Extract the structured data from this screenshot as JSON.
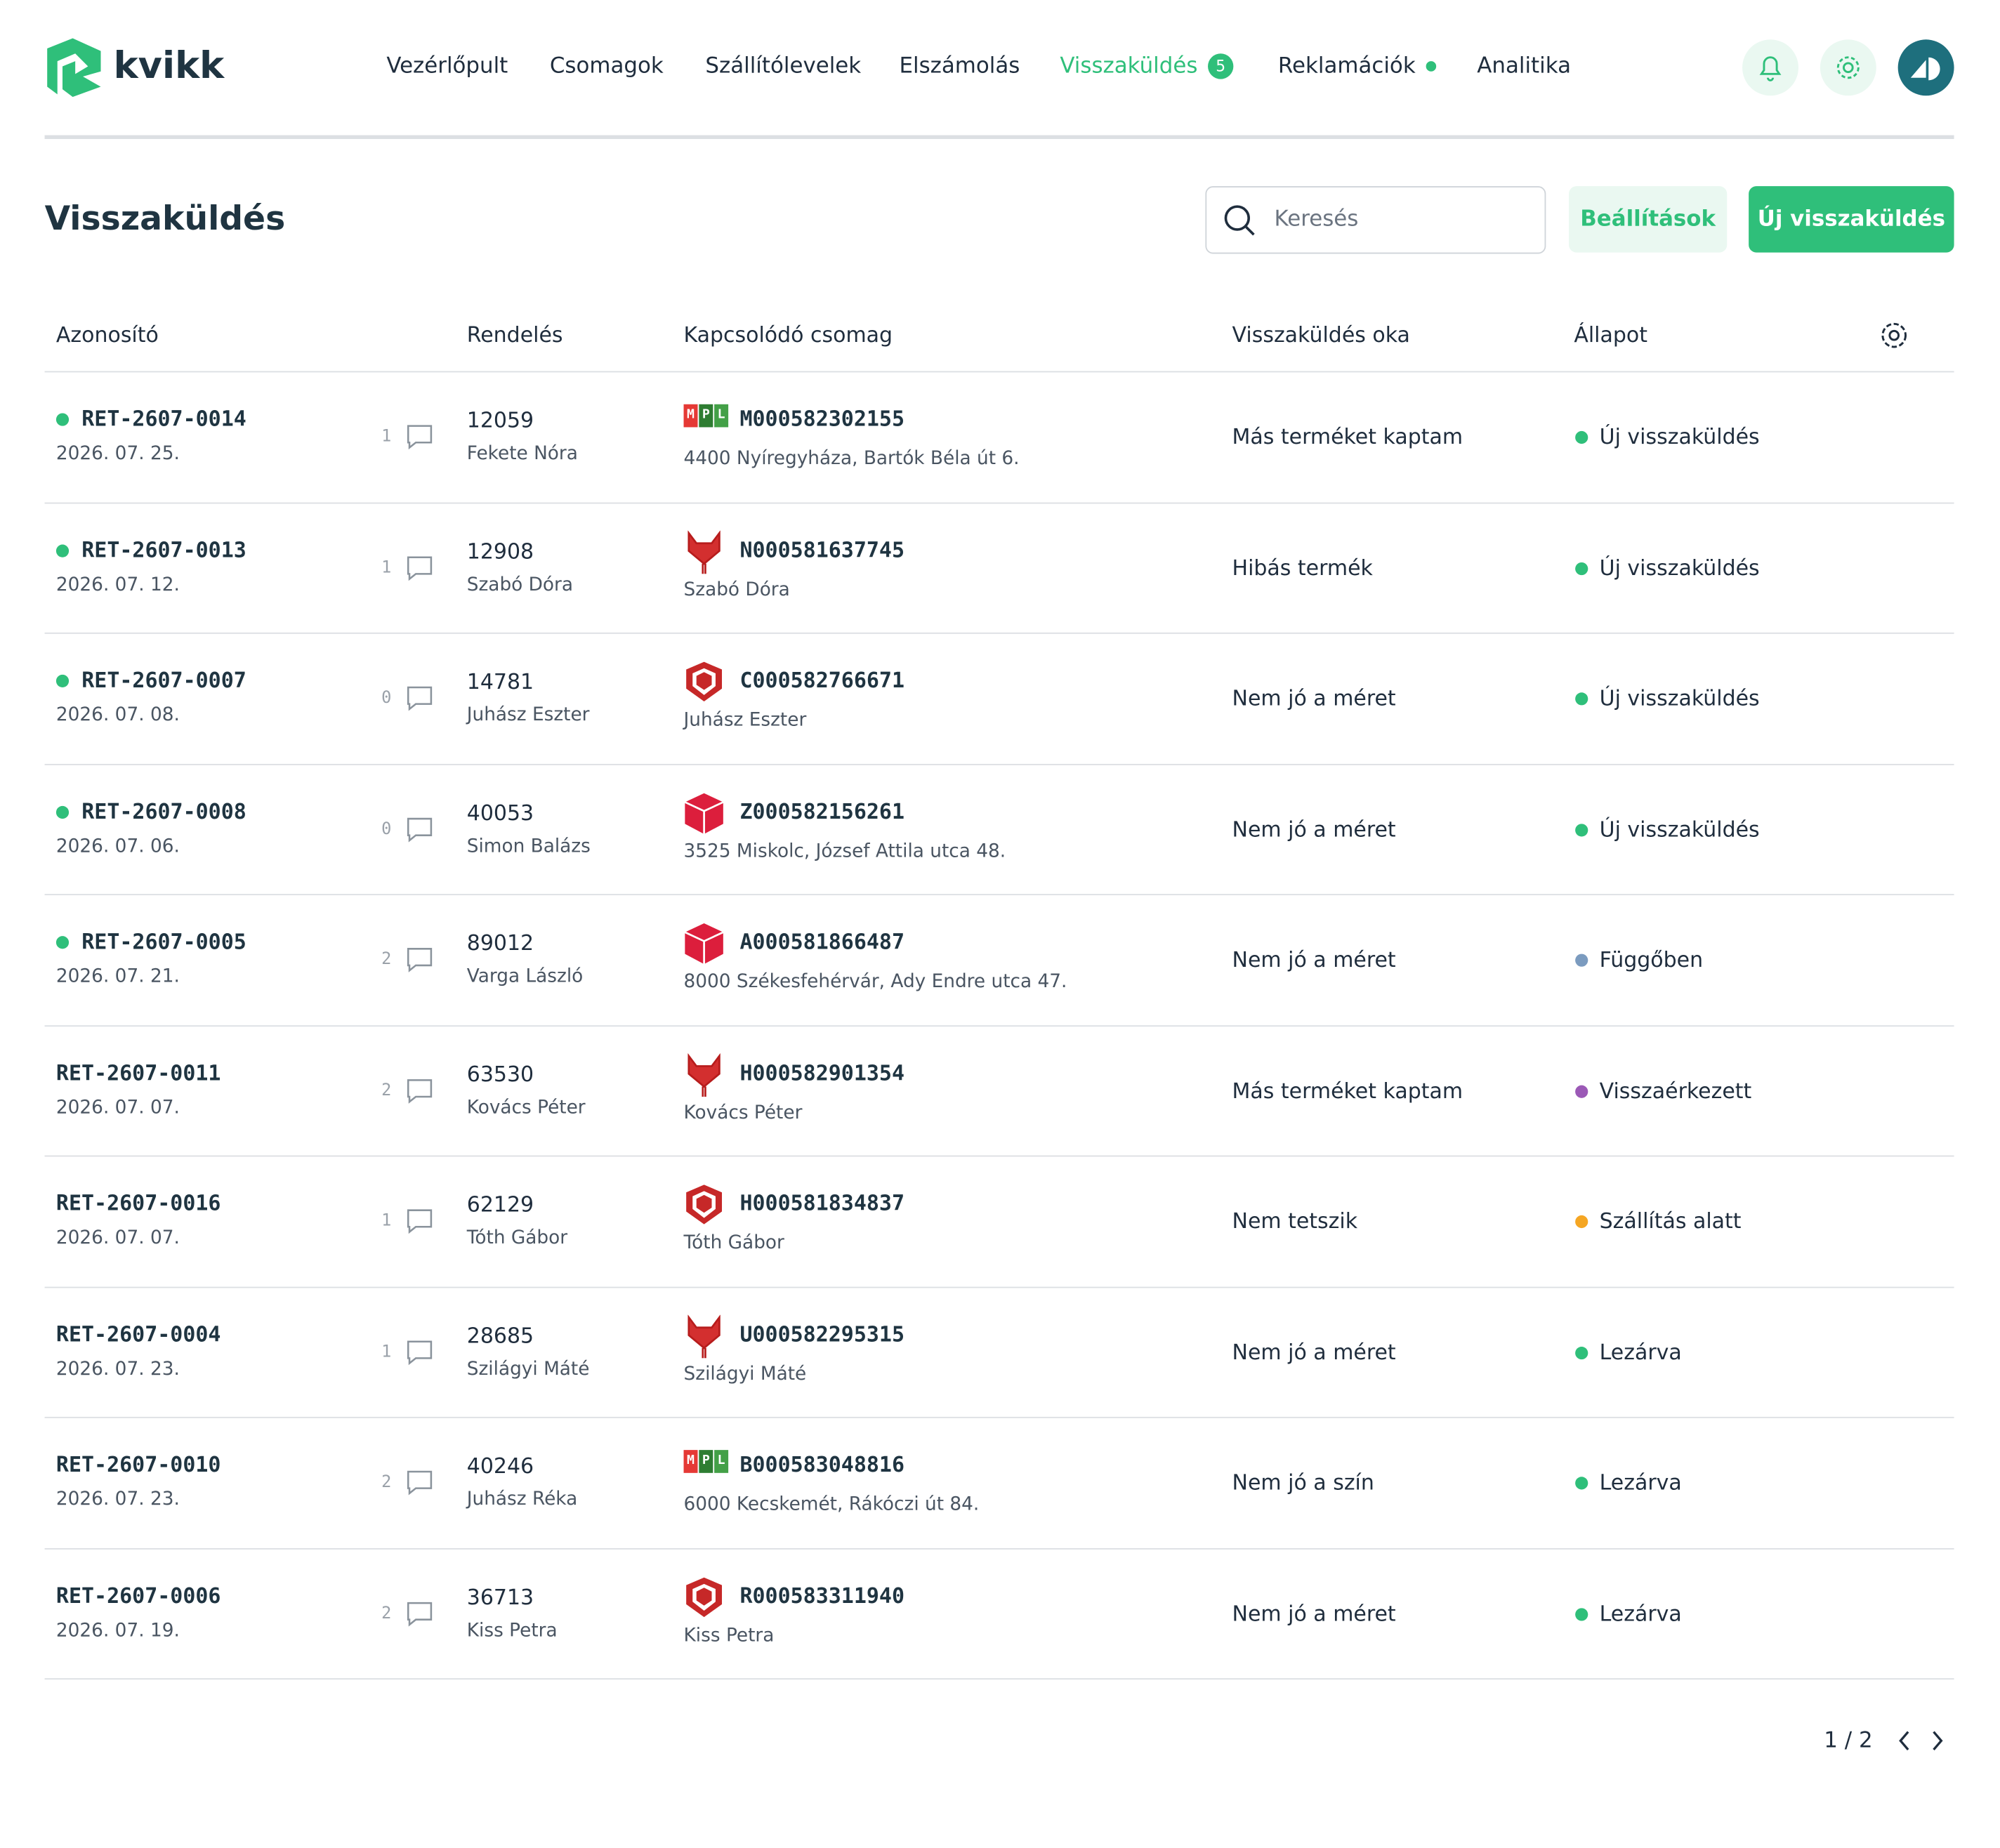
{
  "header": {
    "logo": "kvikk",
    "nav": [
      {
        "label": "Vezérlőpult"
      },
      {
        "label": "Csomagok"
      },
      {
        "label": "Szállítólevelek"
      },
      {
        "label": "Elszámolás"
      },
      {
        "label": "Visszaküldés",
        "active": true,
        "badge": 5
      },
      {
        "label": "Reklamációk",
        "dot": true
      },
      {
        "label": "Analitika"
      }
    ]
  },
  "page": {
    "title": "Visszaküldés",
    "search_placeholder": "Keresés",
    "settings_button": "Beállítások",
    "new_button": "Új visszaküldés"
  },
  "mpl_logo": [
    "M",
    "P",
    "L"
  ],
  "table": {
    "columns": [
      "Azonosító",
      "Rendelés",
      "Kapcsolódó csomag",
      "Visszaküldés oka",
      "Állapot"
    ],
    "rows": [
      {
        "id": "RET-2607-0014",
        "unread": true,
        "date": "2026. 07. 25.",
        "comments": 1,
        "order": "12059",
        "customer": "Fekete Nóra",
        "icon": "mpl",
        "tracking": "M000582302155",
        "address": "4400 Nyíregyháza, Bartók Béla út 6.",
        "reason": "Más terméket kaptam",
        "status": "Új visszaküldés",
        "status_color": "#2fbf7a"
      },
      {
        "id": "RET-2607-0013",
        "unread": true,
        "date": "2026. 07. 12.",
        "comments": 1,
        "order": "12908",
        "customer": "Szabó Dóra",
        "icon": "fox",
        "tracking": "N000581637745",
        "address": "Szabó Dóra",
        "reason": "Hibás termék",
        "status": "Új visszaküldés",
        "status_color": "#2fbf7a"
      },
      {
        "id": "RET-2607-0007",
        "unread": true,
        "date": "2026. 07. 08.",
        "comments": 0,
        "order": "14781",
        "customer": "Juhász Eszter",
        "icon": "shield",
        "tracking": "C000582766671",
        "address": "Juhász Eszter",
        "reason": "Nem jó a méret",
        "status": "Új visszaküldés",
        "status_color": "#2fbf7a"
      },
      {
        "id": "RET-2607-0008",
        "unread": true,
        "date": "2026. 07. 06.",
        "comments": 0,
        "order": "40053",
        "customer": "Simon Balázs",
        "icon": "cube",
        "tracking": "Z000582156261",
        "address": "3525 Miskolc, József Attila utca 48.",
        "reason": "Nem jó a méret",
        "status": "Új visszaküldés",
        "status_color": "#2fbf7a"
      },
      {
        "id": "RET-2607-0005",
        "unread": true,
        "date": "2026. 07. 21.",
        "comments": 2,
        "order": "89012",
        "customer": "Varga László",
        "icon": "cube",
        "tracking": "A000581866487",
        "address": "8000 Székesfehérvár, Ady Endre utca 47.",
        "reason": "Nem jó a méret",
        "status": "Függőben",
        "status_color": "#7b9bbf"
      },
      {
        "id": "RET-2607-0011",
        "unread": false,
        "date": "2026. 07. 07.",
        "comments": 2,
        "order": "63530",
        "customer": "Kovács Péter",
        "icon": "fox",
        "tracking": "H000582901354",
        "address": "Kovács Péter",
        "reason": "Más terméket kaptam",
        "status": "Visszaérkezett",
        "status_color": "#9b59b6"
      },
      {
        "id": "RET-2607-0016",
        "unread": false,
        "date": "2026. 07. 07.",
        "comments": 1,
        "order": "62129",
        "customer": "Tóth Gábor",
        "icon": "shield",
        "tracking": "H000581834837",
        "address": "Tóth Gábor",
        "reason": "Nem tetszik",
        "status": "Szállítás alatt",
        "status_color": "#f5a623"
      },
      {
        "id": "RET-2607-0004",
        "unread": false,
        "date": "2026. 07. 23.",
        "comments": 1,
        "order": "28685",
        "customer": "Szilágyi Máté",
        "icon": "fox",
        "tracking": "U000582295315",
        "address": "Szilágyi Máté",
        "reason": "Nem jó a méret",
        "status": "Lezárva",
        "status_color": "#2fbf7a"
      },
      {
        "id": "RET-2607-0010",
        "unread": false,
        "date": "2026. 07. 23.",
        "comments": 2,
        "order": "40246",
        "customer": "Juhász Réka",
        "icon": "mpl",
        "tracking": "B000583048816",
        "address": "6000 Kecskemét, Rákóczi út 84.",
        "reason": "Nem jó a szín",
        "status": "Lezárva",
        "status_color": "#2fbf7a"
      },
      {
        "id": "RET-2607-0006",
        "unread": false,
        "date": "2026. 07. 19.",
        "comments": 2,
        "order": "36713",
        "customer": "Kiss Petra",
        "icon": "shield",
        "tracking": "R000583311940",
        "address": "Kiss Petra",
        "reason": "Nem jó a méret",
        "status": "Lezárva",
        "status_color": "#2fbf7a"
      }
    ]
  },
  "pagination": "1 / 2"
}
